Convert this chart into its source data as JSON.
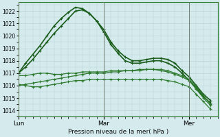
{
  "bg_color": "#d4eaed",
  "grid_color": "#b8d4d8",
  "line_color_dark": "#1a5c1a",
  "line_color_mid": "#2d7a2d",
  "xlabel": "Pression niveau de la mer( hPa )",
  "ylim": [
    1013.5,
    1022.7
  ],
  "yticks": [
    1014,
    1015,
    1016,
    1017,
    1018,
    1019,
    1020,
    1021,
    1022
  ],
  "day_labels": [
    "Lun",
    "Mar",
    "Mer"
  ],
  "day_positions": [
    0,
    12,
    24
  ],
  "xlim": [
    0,
    28
  ],
  "series": [
    {
      "x": [
        0,
        1,
        2,
        3,
        4,
        5,
        6,
        7,
        8,
        9,
        10,
        11,
        12,
        13,
        14,
        15,
        16,
        17,
        18,
        19,
        20,
        21,
        22,
        23,
        24,
        25,
        26,
        27
      ],
      "y": [
        1017.0,
        1017.8,
        1018.5,
        1019.2,
        1020.0,
        1020.8,
        1021.4,
        1021.9,
        1022.3,
        1022.2,
        1021.8,
        1021.2,
        1020.5,
        1019.5,
        1018.8,
        1018.3,
        1018.0,
        1018.0,
        1018.1,
        1018.2,
        1018.2,
        1018.1,
        1017.8,
        1017.2,
        1016.7,
        1016.0,
        1015.3,
        1014.8
      ],
      "linewidth": 1.2,
      "marker": "+"
    },
    {
      "x": [
        0,
        1,
        2,
        3,
        4,
        5,
        6,
        7,
        8,
        9,
        10,
        11,
        12,
        13,
        14,
        15,
        16,
        17,
        18,
        19,
        20,
        21,
        22,
        23,
        24,
        25,
        26,
        27
      ],
      "y": [
        1017.0,
        1017.5,
        1018.1,
        1018.8,
        1019.5,
        1020.2,
        1020.8,
        1021.4,
        1022.0,
        1022.1,
        1021.8,
        1021.2,
        1020.3,
        1019.3,
        1018.6,
        1018.0,
        1017.8,
        1017.8,
        1017.9,
        1018.0,
        1018.0,
        1017.8,
        1017.5,
        1017.0,
        1016.4,
        1015.8,
        1015.1,
        1014.6
      ],
      "linewidth": 1.2,
      "marker": "+"
    },
    {
      "x": [
        0,
        1,
        2,
        3,
        4,
        5,
        6,
        7,
        8,
        9,
        10,
        11,
        12,
        13,
        14,
        15,
        16,
        17,
        18,
        19,
        20,
        21,
        22,
        23,
        24,
        25,
        26,
        27
      ],
      "y": [
        1016.8,
        1016.8,
        1016.9,
        1017.0,
        1017.0,
        1016.9,
        1016.9,
        1017.0,
        1017.0,
        1017.1,
        1017.1,
        1017.1,
        1017.1,
        1017.2,
        1017.2,
        1017.2,
        1017.2,
        1017.3,
        1017.3,
        1017.3,
        1017.2,
        1017.1,
        1016.9,
        1016.7,
        1016.4,
        1015.7,
        1015.0,
        1014.4
      ],
      "linewidth": 0.9,
      "marker": "+"
    },
    {
      "x": [
        0,
        1,
        2,
        3,
        4,
        5,
        6,
        7,
        8,
        9,
        10,
        11,
        12,
        13,
        14,
        15,
        16,
        17,
        18,
        19,
        20,
        21,
        22,
        23,
        24,
        25,
        26,
        27
      ],
      "y": [
        1016.1,
        1016.0,
        1015.9,
        1015.9,
        1016.0,
        1016.1,
        1016.2,
        1016.3,
        1016.4,
        1016.4,
        1016.5,
        1016.5,
        1016.5,
        1016.5,
        1016.5,
        1016.5,
        1016.5,
        1016.5,
        1016.5,
        1016.5,
        1016.5,
        1016.4,
        1016.3,
        1016.1,
        1015.9,
        1015.3,
        1014.7,
        1014.1
      ],
      "linewidth": 0.9,
      "marker": "+"
    },
    {
      "x": [
        0,
        1,
        2,
        3,
        4,
        5,
        6,
        7,
        8,
        9,
        10,
        11,
        12,
        13,
        14,
        15,
        16,
        17,
        18,
        19,
        20,
        21,
        22,
        23,
        24,
        25,
        26,
        27
      ],
      "y": [
        1016.0,
        1016.1,
        1016.2,
        1016.3,
        1016.4,
        1016.5,
        1016.6,
        1016.7,
        1016.8,
        1016.9,
        1017.0,
        1017.0,
        1017.0,
        1017.1,
        1017.1,
        1017.2,
        1017.2,
        1017.2,
        1017.3,
        1017.3,
        1017.3,
        1017.2,
        1017.0,
        1016.8,
        1016.5,
        1015.9,
        1015.2,
        1014.5
      ],
      "linewidth": 0.9,
      "marker": "+"
    }
  ]
}
